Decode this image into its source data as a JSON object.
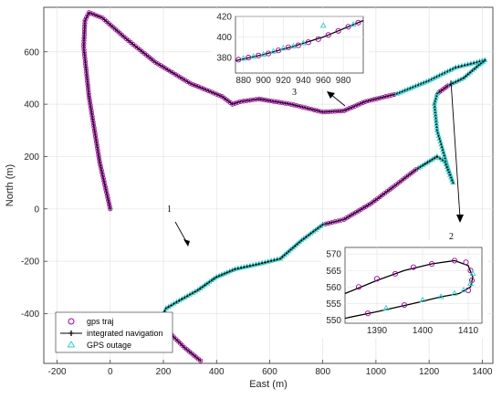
{
  "chart_data": {
    "type": "line",
    "title": "",
    "xlabel": "East (m)",
    "ylabel": "North (m)",
    "xlim": [
      -250,
      1440
    ],
    "ylim": [
      -590,
      770
    ],
    "xticks": [
      -200,
      0,
      200,
      400,
      600,
      800,
      1000,
      1200,
      1400
    ],
    "yticks": [
      -400,
      -200,
      0,
      200,
      400,
      600
    ],
    "legend_position": "bottom-left",
    "legend": [
      "gps traj",
      "integrated navigation",
      "GPS outage"
    ],
    "colors": {
      "gps": "#9b009b",
      "nav": "#000000",
      "outage": "#33cccc"
    },
    "route": [
      [
        0,
        0
      ],
      [
        -40,
        180
      ],
      [
        -80,
        430
      ],
      [
        -100,
        620
      ],
      [
        -95,
        720
      ],
      [
        -80,
        750
      ],
      [
        -30,
        730
      ],
      [
        60,
        650
      ],
      [
        170,
        560
      ],
      [
        300,
        480
      ],
      [
        420,
        430
      ],
      [
        460,
        400
      ],
      [
        490,
        410
      ],
      [
        560,
        420
      ],
      [
        680,
        400
      ],
      [
        800,
        370
      ],
      [
        880,
        375
      ],
      [
        960,
        410
      ],
      [
        1080,
        440
      ],
      [
        1200,
        490
      ],
      [
        1300,
        540
      ],
      [
        1380,
        560
      ],
      [
        1410,
        568
      ],
      [
        1388,
        550
      ],
      [
        1330,
        500
      ],
      [
        1270,
        470
      ],
      [
        1230,
        440
      ],
      [
        1220,
        400
      ],
      [
        1230,
        300
      ],
      [
        1270,
        160
      ],
      [
        1290,
        100
      ],
      [
        1260,
        180
      ],
      [
        1230,
        200
      ],
      [
        1150,
        150
      ],
      [
        1060,
        80
      ],
      [
        980,
        20
      ],
      [
        880,
        -40
      ],
      [
        800,
        -60
      ],
      [
        720,
        -120
      ],
      [
        640,
        -190
      ],
      [
        560,
        -210
      ],
      [
        470,
        -230
      ],
      [
        400,
        -260
      ],
      [
        330,
        -310
      ],
      [
        260,
        -350
      ],
      [
        210,
        -380
      ],
      [
        190,
        -420
      ],
      [
        230,
        -480
      ],
      [
        280,
        -530
      ],
      [
        340,
        -580
      ]
    ],
    "outage_segments": [
      [
        18,
        25
      ],
      [
        26,
        33
      ],
      [
        37,
        46
      ]
    ],
    "insets": [
      {
        "label": "3",
        "xlim": [
          872,
          1000
        ],
        "ylim": [
          365,
          420
        ],
        "xticks": [
          880,
          900,
          920,
          940,
          960,
          980
        ],
        "yticks": [
          380,
          400,
          420
        ],
        "line": [
          [
            872,
            377
          ],
          [
            900,
            383
          ],
          [
            930,
            391
          ],
          [
            960,
            400
          ],
          [
            1000,
            416
          ]
        ],
        "gps": [
          [
            875,
            378
          ],
          [
            885,
            380
          ],
          [
            895,
            382
          ],
          [
            905,
            384
          ],
          [
            915,
            387
          ],
          [
            925,
            390
          ],
          [
            935,
            392
          ],
          [
            945,
            395
          ],
          [
            955,
            398
          ],
          [
            965,
            402
          ],
          [
            975,
            406
          ],
          [
            985,
            410
          ],
          [
            995,
            414
          ]
        ],
        "outage": [
          [
            880,
            379
          ],
          [
            890,
            381
          ],
          [
            900,
            383
          ],
          [
            910,
            386
          ],
          [
            920,
            389
          ],
          [
            930,
            391
          ],
          [
            940,
            394
          ],
          [
            960,
            411
          ],
          [
            990,
            412
          ]
        ]
      },
      {
        "label": "2",
        "xlim": [
          1383,
          1413
        ],
        "ylim": [
          549,
          572
        ],
        "xticks": [
          1390,
          1400,
          1410
        ],
        "yticks": [
          550,
          555,
          560,
          565,
          570
        ],
        "line": [
          [
            1383,
            550.5
          ],
          [
            1390,
            552.5
          ],
          [
            1398,
            555
          ],
          [
            1404,
            557
          ],
          [
            1408,
            558
          ],
          [
            1410.5,
            560
          ],
          [
            1411,
            563
          ],
          [
            1410,
            566.5
          ],
          [
            1407,
            568
          ],
          [
            1402,
            567
          ],
          [
            1396,
            565
          ],
          [
            1390,
            562
          ],
          [
            1383,
            558
          ]
        ],
        "gps": [
          [
            1386,
            560
          ],
          [
            1390,
            562.5
          ],
          [
            1394,
            564
          ],
          [
            1398,
            566
          ],
          [
            1402,
            567
          ],
          [
            1407,
            568
          ],
          [
            1409.5,
            567.5
          ],
          [
            1410.5,
            565
          ],
          [
            1410.8,
            562
          ],
          [
            1410,
            559
          ],
          [
            1388,
            552
          ],
          [
            1396,
            554.5
          ]
        ],
        "outage": [
          [
            1392,
            553.5
          ],
          [
            1400,
            556
          ],
          [
            1404,
            557
          ],
          [
            1407,
            558
          ],
          [
            1409,
            559
          ],
          [
            1410.5,
            561
          ],
          [
            1411,
            564
          ]
        ]
      }
    ],
    "annotations": [
      "1",
      "2",
      "3"
    ]
  }
}
